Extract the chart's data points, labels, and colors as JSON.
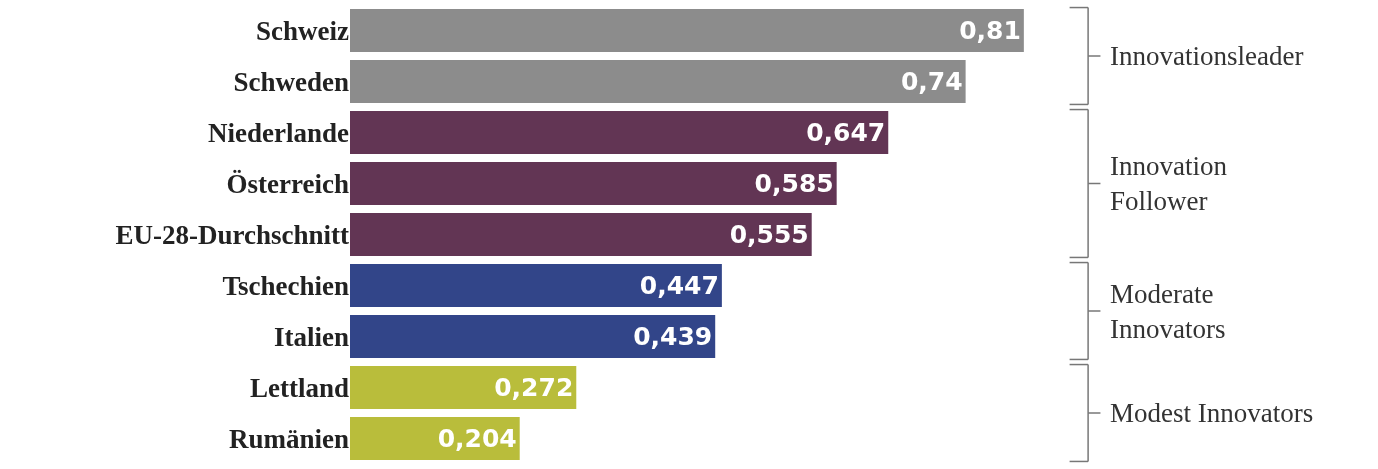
{
  "chart_data": {
    "type": "bar",
    "orientation": "horizontal",
    "categories": [
      "Schweiz",
      "Schweden",
      "Niederlande",
      "Österreich",
      "EU-28-Durchschnitt",
      "Tschechien",
      "Italien",
      "Lettland",
      "Rumänien"
    ],
    "series": [
      {
        "name": "Innovationsleader",
        "color": "#8c8c8c",
        "values": [
          0.81,
          0.74,
          null,
          null,
          null,
          null,
          null,
          null,
          null
        ],
        "value_labels": [
          "0,81",
          "0,74",
          null,
          null,
          null,
          null,
          null,
          null,
          null
        ]
      },
      {
        "name": "Innovation Follower",
        "color": "#623554",
        "values": [
          null,
          null,
          0.647,
          0.585,
          0.555,
          null,
          null,
          null,
          null
        ],
        "value_labels": [
          null,
          null,
          "0,647",
          "0,585",
          "0,555",
          null,
          null,
          null,
          null
        ]
      },
      {
        "name": "Moderate Innovators",
        "color": "#324589",
        "values": [
          null,
          null,
          null,
          null,
          null,
          0.447,
          0.439,
          null,
          null
        ],
        "value_labels": [
          null,
          null,
          null,
          null,
          null,
          "0,447",
          "0,439",
          null,
          null
        ]
      },
      {
        "name": "Modest Innovators",
        "color": "#b9bd3b",
        "values": [
          null,
          null,
          null,
          null,
          null,
          null,
          null,
          0.272,
          0.204
        ],
        "value_labels": [
          null,
          null,
          null,
          null,
          null,
          null,
          null,
          "0,272",
          "0,204"
        ]
      }
    ],
    "tick_labels": "y"
  }
}
